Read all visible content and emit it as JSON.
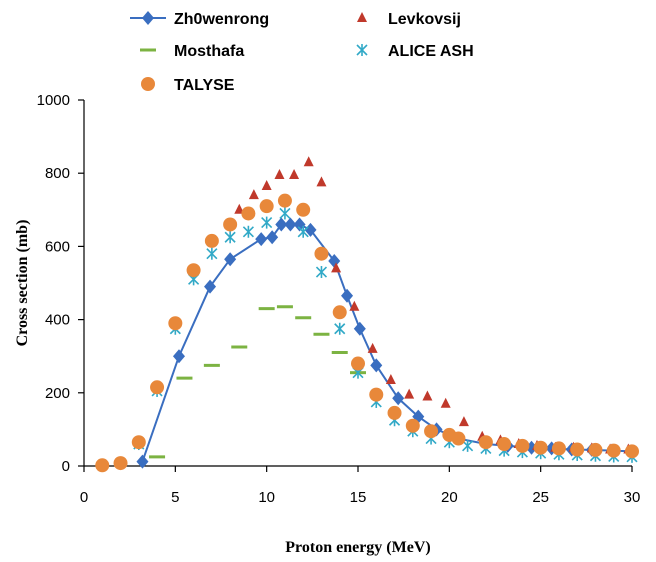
{
  "chart_data": {
    "type": "scatter",
    "title": "",
    "xlabel": "Proton energy (MeV)",
    "ylabel": "Cross section (mb)",
    "xlim": [
      0,
      30
    ],
    "ylim": [
      0,
      1000
    ],
    "xticks": [
      0,
      5,
      10,
      15,
      20,
      25,
      30
    ],
    "yticks": [
      0,
      200,
      400,
      600,
      800,
      1000
    ],
    "grid": false,
    "legend_position": "top",
    "series": [
      {
        "name": "Zh0wenrong",
        "marker": "diamond",
        "color": "#3a6ec0",
        "line": true,
        "x": [
          3.2,
          5.2,
          6.9,
          8.0,
          9.7,
          10.3,
          10.8,
          11.3,
          11.8,
          12.4,
          13.7,
          14.4,
          15.1,
          16.0,
          17.2,
          18.3,
          19.3,
          20.5,
          22.0,
          23.2,
          24.5,
          25.6,
          26.7,
          27.8,
          28.9,
          30.0
        ],
        "y": [
          12,
          300,
          490,
          565,
          620,
          625,
          660,
          660,
          660,
          645,
          560,
          465,
          375,
          275,
          185,
          135,
          100,
          75,
          60,
          55,
          50,
          48,
          45,
          44,
          42,
          40
        ]
      },
      {
        "name": "Levkovsij",
        "marker": "triangle",
        "color": "#c0392b",
        "line": false,
        "x": [
          8.5,
          9.3,
          10.0,
          10.7,
          11.5,
          12.3,
          13.0,
          13.8,
          14.8,
          15.8,
          16.8,
          17.8,
          18.8,
          19.8,
          20.8,
          21.8,
          22.8,
          23.8,
          24.8,
          25.8,
          26.8,
          27.8,
          28.8,
          29.8
        ],
        "y": [
          700,
          740,
          765,
          795,
          795,
          830,
          775,
          540,
          435,
          320,
          235,
          195,
          190,
          170,
          120,
          80,
          70,
          60,
          55,
          50,
          50,
          48,
          45,
          45
        ]
      },
      {
        "name": "Mosthafa",
        "marker": "dash",
        "color": "#7cb342",
        "line": false,
        "x": [
          4.0,
          5.5,
          7.0,
          8.5,
          10.0,
          11.0,
          12.0,
          13.0,
          14.0,
          15.0
        ],
        "y": [
          25,
          240,
          275,
          325,
          430,
          435,
          405,
          360,
          310,
          255
        ]
      },
      {
        "name": "ALICE ASH",
        "marker": "asterisk",
        "color": "#31a9c7",
        "line": false,
        "x": [
          3.0,
          4.0,
          5.0,
          6.0,
          7.0,
          8.0,
          9.0,
          10.0,
          11.0,
          12.0,
          13.0,
          14.0,
          15.0,
          16.0,
          17.0,
          18.0,
          19.0,
          20.0,
          21.0,
          22.0,
          23.0,
          24.0,
          25.0,
          26.0,
          27.0,
          28.0,
          29.0,
          30.0
        ],
        "y": [
          60,
          205,
          375,
          510,
          580,
          625,
          640,
          665,
          690,
          640,
          530,
          375,
          255,
          175,
          125,
          95,
          75,
          65,
          55,
          48,
          42,
          38,
          35,
          32,
          30,
          28,
          26,
          25
        ]
      },
      {
        "name": "TALYSE",
        "marker": "circle",
        "color": "#e8883a",
        "line": false,
        "x": [
          1.0,
          2.0,
          3.0,
          4.0,
          5.0,
          6.0,
          7.0,
          8.0,
          9.0,
          10.0,
          11.0,
          12.0,
          13.0,
          14.0,
          15.0,
          16.0,
          17.0,
          18.0,
          19.0,
          20.0,
          20.5,
          22.0,
          23.0,
          24.0,
          25.0,
          26.0,
          27.0,
          28.0,
          29.0,
          30.0
        ],
        "y": [
          2,
          8,
          65,
          215,
          390,
          535,
          615,
          660,
          690,
          710,
          725,
          700,
          580,
          420,
          280,
          195,
          145,
          110,
          95,
          85,
          75,
          65,
          60,
          55,
          50,
          48,
          45,
          44,
          42,
          40
        ]
      }
    ]
  }
}
